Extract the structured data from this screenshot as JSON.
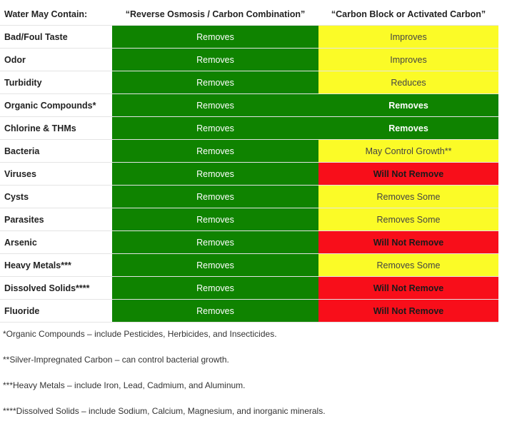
{
  "table": {
    "headers": [
      "Water May Contain:",
      "“Reverse Osmosis / Carbon Combination”",
      "“Carbon Block or Activated Carbon”"
    ],
    "rows": [
      {
        "label": "Bad/Foul Taste",
        "ro": "Removes",
        "carbon": "Improves",
        "carbon_status": "yellow"
      },
      {
        "label": "Odor",
        "ro": "Removes",
        "carbon": "Improves",
        "carbon_status": "yellow"
      },
      {
        "label": "Turbidity",
        "ro": "Removes",
        "carbon": "Reduces",
        "carbon_status": "yellow"
      },
      {
        "label": "Organic Compounds*",
        "ro": "Removes",
        "carbon": "Removes",
        "carbon_status": "green"
      },
      {
        "label": "Chlorine & THMs",
        "ro": "Removes",
        "carbon": "Removes",
        "carbon_status": "green"
      },
      {
        "label": "Bacteria",
        "ro": "Removes",
        "carbon": "May Control Growth**",
        "carbon_status": "yellow"
      },
      {
        "label": "Viruses",
        "ro": "Removes",
        "carbon": "Will Not Remove",
        "carbon_status": "red"
      },
      {
        "label": "Cysts",
        "ro": "Removes",
        "carbon": "Removes Some",
        "carbon_status": "yellow"
      },
      {
        "label": "Parasites",
        "ro": "Removes",
        "carbon": "Removes Some",
        "carbon_status": "yellow"
      },
      {
        "label": "Arsenic",
        "ro": "Removes",
        "carbon": "Will Not Remove",
        "carbon_status": "red"
      },
      {
        "label": "Heavy Metals***",
        "ro": "Removes",
        "carbon": "Removes Some",
        "carbon_status": "yellow"
      },
      {
        "label": "Dissolved Solids****",
        "ro": "Removes",
        "carbon": "Will Not Remove",
        "carbon_status": "red"
      },
      {
        "label": "Fluoride",
        "ro": "Removes",
        "carbon": "Will Not Remove",
        "carbon_status": "red"
      }
    ]
  },
  "notes": [
    "*Organic Compounds – include Pesticides, Herbicides, and Insecticides.",
    "**Silver-Impregnated Carbon – can control bacterial growth.",
    "***Heavy Metals – include Iron, Lead, Cadmium, and Aluminum.",
    "****Dissolved Solids – include Sodium, Calcium, Magnesium, and inorganic minerals."
  ],
  "colors": {
    "green": "#0f8300",
    "yellow": "#fbfb27",
    "red": "#f80e1a"
  }
}
